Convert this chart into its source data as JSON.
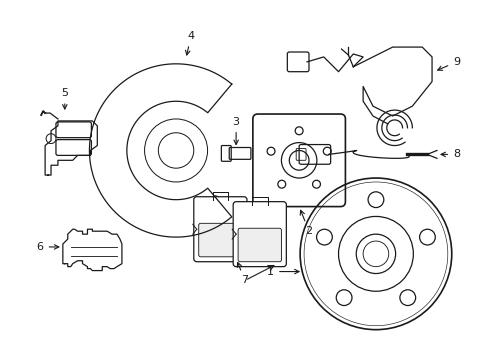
{
  "bg_color": "#ffffff",
  "line_color": "#1a1a1a",
  "lw": 0.9,
  "fs": 8,
  "figsize": [
    4.89,
    3.6
  ],
  "dpi": 100
}
